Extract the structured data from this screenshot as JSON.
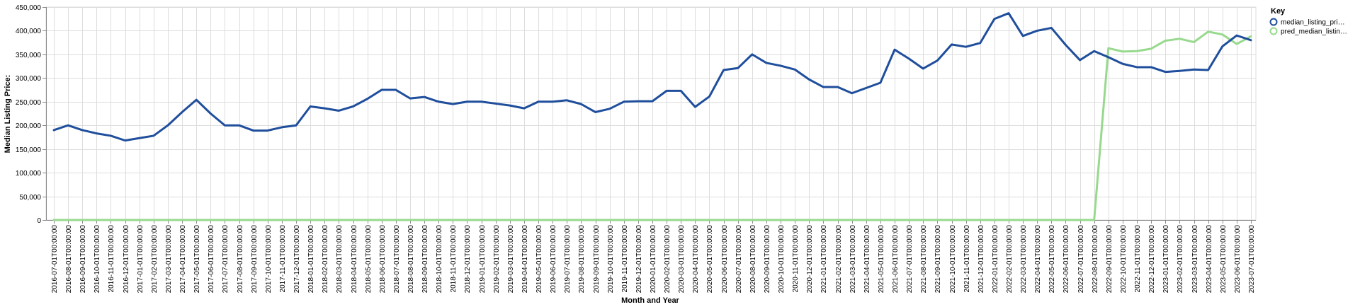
{
  "chart_data": {
    "type": "line",
    "xlabel": "Month and Year",
    "ylabel": "Median Listing Price:",
    "ylim": [
      0,
      450000
    ],
    "y_ticks": [
      0,
      50000,
      100000,
      150000,
      200000,
      250000,
      300000,
      350000,
      400000,
      450000
    ],
    "y_tick_labels": [
      "0",
      "50,000",
      "100,000",
      "150,000",
      "200,000",
      "250,000",
      "300,000",
      "350,000",
      "400,000",
      "450,000"
    ],
    "grid": true,
    "legend": {
      "title": "Key",
      "placement": "top-right",
      "entries": [
        "median_listing_pri…",
        "pred_median_listin…"
      ]
    },
    "categories": [
      "2016-07-01T00:00:00",
      "2016-08-01T00:00:00",
      "2016-09-01T00:00:00",
      "2016-10-01T00:00:00",
      "2016-11-01T00:00:00",
      "2016-12-01T00:00:00",
      "2017-01-01T00:00:00",
      "2017-02-01T00:00:00",
      "2017-03-01T00:00:00",
      "2017-04-01T00:00:00",
      "2017-05-01T00:00:00",
      "2017-06-01T00:00:00",
      "2017-07-01T00:00:00",
      "2017-08-01T00:00:00",
      "2017-09-01T00:00:00",
      "2017-10-01T00:00:00",
      "2017-11-01T00:00:00",
      "2017-12-01T00:00:00",
      "2018-01-01T00:00:00",
      "2018-02-01T00:00:00",
      "2018-03-01T00:00:00",
      "2018-04-01T00:00:00",
      "2018-05-01T00:00:00",
      "2018-06-01T00:00:00",
      "2018-07-01T00:00:00",
      "2018-08-01T00:00:00",
      "2018-09-01T00:00:00",
      "2018-10-01T00:00:00",
      "2018-11-01T00:00:00",
      "2018-12-01T00:00:00",
      "2019-01-01T00:00:00",
      "2019-02-01T00:00:00",
      "2019-03-01T00:00:00",
      "2019-04-01T00:00:00",
      "2019-05-01T00:00:00",
      "2019-06-01T00:00:00",
      "2019-07-01T00:00:00",
      "2019-08-01T00:00:00",
      "2019-09-01T00:00:00",
      "2019-10-01T00:00:00",
      "2019-11-01T00:00:00",
      "2019-12-01T00:00:00",
      "2020-01-01T00:00:00",
      "2020-02-01T00:00:00",
      "2020-03-01T00:00:00",
      "2020-04-01T00:00:00",
      "2020-05-01T00:00:00",
      "2020-06-01T00:00:00",
      "2020-07-01T00:00:00",
      "2020-08-01T00:00:00",
      "2020-09-01T00:00:00",
      "2020-10-01T00:00:00",
      "2020-11-01T00:00:00",
      "2020-12-01T00:00:00",
      "2021-01-01T00:00:00",
      "2021-02-01T00:00:00",
      "2021-03-01T00:00:00",
      "2021-04-01T00:00:00",
      "2021-05-01T00:00:00",
      "2021-06-01T00:00:00",
      "2021-07-01T00:00:00",
      "2021-08-01T00:00:00",
      "2021-09-01T00:00:00",
      "2021-10-01T00:00:00",
      "2021-11-01T00:00:00",
      "2021-12-01T00:00:00",
      "2022-01-01T00:00:00",
      "2022-02-01T00:00:00",
      "2022-03-01T00:00:00",
      "2022-04-01T00:00:00",
      "2022-05-01T00:00:00",
      "2022-06-01T00:00:00",
      "2022-07-01T00:00:00",
      "2022-08-01T00:00:00",
      "2022-09-01T00:00:00",
      "2022-10-01T00:00:00",
      "2022-11-01T00:00:00",
      "2022-12-01T00:00:00",
      "2023-01-01T00:00:00",
      "2023-02-01T00:00:00",
      "2023-03-01T00:00:00",
      "2023-04-01T00:00:00",
      "2023-05-01T00:00:00",
      "2023-06-01T00:00:00",
      "2023-07-01T00:00:00"
    ],
    "series": [
      {
        "name": "median_listing_pri…",
        "color": "#1f4e9c",
        "values": [
          190000,
          200000,
          190000,
          183000,
          178000,
          168000,
          173000,
          178000,
          200000,
          228000,
          254000,
          225000,
          200000,
          200000,
          189000,
          189000,
          196000,
          200000,
          240000,
          236000,
          231000,
          240000,
          256000,
          275000,
          275000,
          257000,
          260000,
          250000,
          245000,
          250000,
          250000,
          246000,
          242000,
          236000,
          250000,
          250000,
          253000,
          245000,
          228000,
          235000,
          250000,
          251000,
          251000,
          273000,
          273000,
          239000,
          261000,
          317000,
          321000,
          350000,
          332000,
          326000,
          318000,
          297000,
          281000,
          281000,
          268000,
          279000,
          290000,
          360000,
          341000,
          320000,
          337000,
          371000,
          366000,
          374000,
          425000,
          437000,
          389000,
          400000,
          406000,
          370000,
          338000,
          357000,
          344000,
          330000,
          323000,
          323000,
          313000,
          315000,
          318000,
          317000,
          367000,
          390000,
          380000
        ]
      },
      {
        "name": "pred_median_listin…",
        "color": "#98d98e",
        "values": [
          0,
          0,
          0,
          0,
          0,
          0,
          0,
          0,
          0,
          0,
          0,
          0,
          0,
          0,
          0,
          0,
          0,
          0,
          0,
          0,
          0,
          0,
          0,
          0,
          0,
          0,
          0,
          0,
          0,
          0,
          0,
          0,
          0,
          0,
          0,
          0,
          0,
          0,
          0,
          0,
          0,
          0,
          0,
          0,
          0,
          0,
          0,
          0,
          0,
          0,
          0,
          0,
          0,
          0,
          0,
          0,
          0,
          0,
          0,
          0,
          0,
          0,
          0,
          0,
          0,
          0,
          0,
          0,
          0,
          0,
          0,
          0,
          0,
          0,
          363000,
          356000,
          357000,
          362000,
          379000,
          383000,
          376000,
          398000,
          392000,
          372000,
          388000
        ]
      }
    ]
  }
}
